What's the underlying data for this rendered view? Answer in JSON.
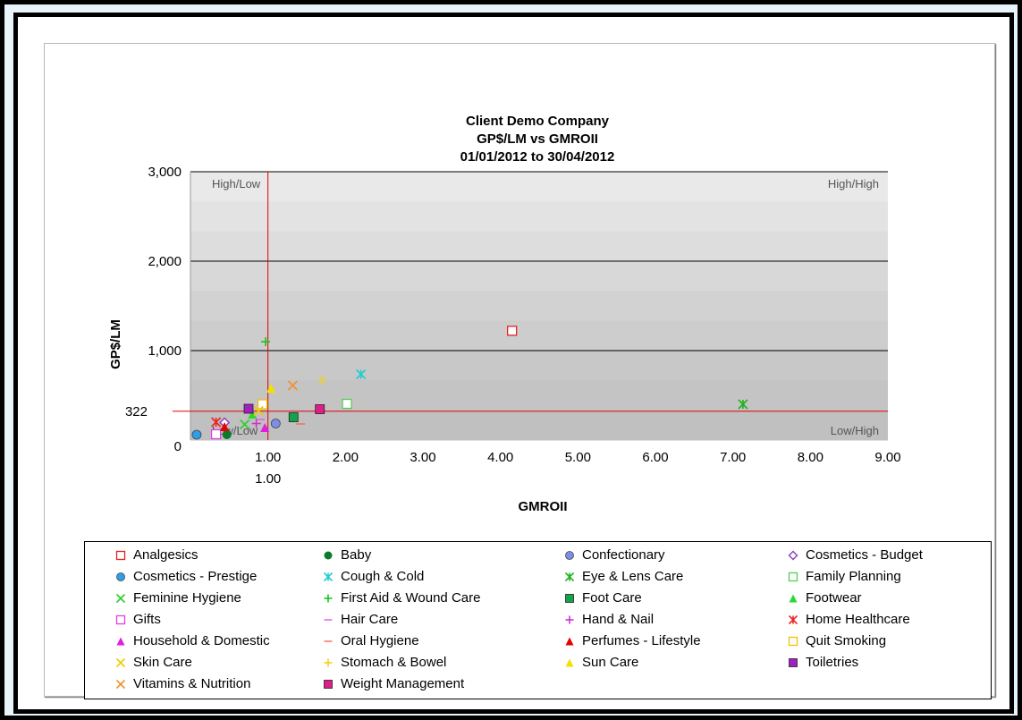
{
  "chart_data": {
    "type": "scatter",
    "title": [
      "Client Demo Company",
      "GP$/LM vs GMROII",
      "01/01/2012 to 30/04/2012"
    ],
    "xlabel": "GMROII",
    "ylabel": "GP$/LM",
    "xlim": [
      0,
      9
    ],
    "ylim": [
      0,
      3000
    ],
    "x_ticks": [
      "1.00",
      "2.00",
      "3.00",
      "4.00",
      "5.00",
      "6.00",
      "7.00",
      "8.00",
      "9.00"
    ],
    "y_ticks": [
      "0",
      "1,000",
      "2,000",
      "3,000"
    ],
    "reference_lines": {
      "x": 1.0,
      "x_label": "1.00",
      "y": 322,
      "y_label": "322"
    },
    "quadrant_labels": {
      "top_left": "High/Low",
      "top_right": "High/High",
      "bottom_left": "Low/Low",
      "bottom_right": "Low/High"
    },
    "series": [
      {
        "name": "Analgesics",
        "marker": "square-open",
        "color": "#e8201e",
        "x": 4.15,
        "y": 1222
      },
      {
        "name": "Baby",
        "marker": "circle",
        "color": "#0b7a2a",
        "x": 0.47,
        "y": 60
      },
      {
        "name": "Confectionary",
        "marker": "circle-purple",
        "color": "#7b8fe8",
        "x": 1.1,
        "y": 185
      },
      {
        "name": "Cosmetics - Budget",
        "marker": "diamond-open",
        "color": "#8a3fb0",
        "x": 0.44,
        "y": 195
      },
      {
        "name": "Cosmetics - Prestige",
        "marker": "circle-blue",
        "color": "#2c9fe8",
        "x": 0.08,
        "y": 60
      },
      {
        "name": "Cough & Cold",
        "marker": "asterisk",
        "color": "#22cccc",
        "x": 2.2,
        "y": 735
      },
      {
        "name": "Eye & Lens Care",
        "marker": "asterisk",
        "color": "#1cb31c",
        "x": 7.13,
        "y": 400
      },
      {
        "name": "Family Planning",
        "marker": "square-open",
        "color": "#55cc55",
        "x": 2.02,
        "y": 405
      },
      {
        "name": "Feminine Hygiene",
        "marker": "x",
        "color": "#2ecc2e",
        "x": 0.7,
        "y": 175
      },
      {
        "name": "First Aid & Wound Care",
        "marker": "plus",
        "color": "#18c418",
        "x": 0.97,
        "y": 1100
      },
      {
        "name": "Foot Care",
        "marker": "square-filled",
        "color": "#14a34a",
        "x": 1.33,
        "y": 255
      },
      {
        "name": "Footwear",
        "marker": "triangle",
        "color": "#2ed82e",
        "x": 0.8,
        "y": 290
      },
      {
        "name": "Gifts",
        "marker": "square-open",
        "color": "#e040e0",
        "x": 0.33,
        "y": 65
      },
      {
        "name": "Hair Care",
        "marker": "dash",
        "color": "#ee55ee",
        "x": 0.9,
        "y": 230
      },
      {
        "name": "Hand & Nail",
        "marker": "plus",
        "color": "#cc33cc",
        "x": 0.85,
        "y": 185
      },
      {
        "name": "Home Healthcare",
        "marker": "asterisk",
        "color": "#ee2222",
        "x": 0.33,
        "y": 200
      },
      {
        "name": "Household & Domestic",
        "marker": "triangle",
        "color": "#e01ee0",
        "x": 0.96,
        "y": 140
      },
      {
        "name": "Oral Hygiene",
        "marker": "dash",
        "color": "#ff6655",
        "x": 1.42,
        "y": 180
      },
      {
        "name": "Perfumes - Lifestyle",
        "marker": "triangle",
        "color": "#e80000",
        "x": 0.44,
        "y": 150
      },
      {
        "name": "Quit Smoking",
        "marker": "square-open",
        "color": "#f2c200",
        "x": 0.93,
        "y": 400
      },
      {
        "name": "Skin Care",
        "marker": "x",
        "color": "#eecc00",
        "x": 0.88,
        "y": 325
      },
      {
        "name": "Stomach & Bowel",
        "marker": "plus",
        "color": "#f2d21a",
        "x": 1.7,
        "y": 670
      },
      {
        "name": "Sun Care",
        "marker": "triangle",
        "color": "#f2e000",
        "x": 1.04,
        "y": 580
      },
      {
        "name": "Toiletries",
        "marker": "square-filled",
        "color": "#a020c0",
        "x": 0.75,
        "y": 350
      },
      {
        "name": "Vitamins & Nutrition",
        "marker": "x",
        "color": "#f09030",
        "x": 1.32,
        "y": 610
      },
      {
        "name": "Weight Management",
        "marker": "square-filled",
        "color": "#e01e8a",
        "x": 1.67,
        "y": 345
      }
    ]
  }
}
